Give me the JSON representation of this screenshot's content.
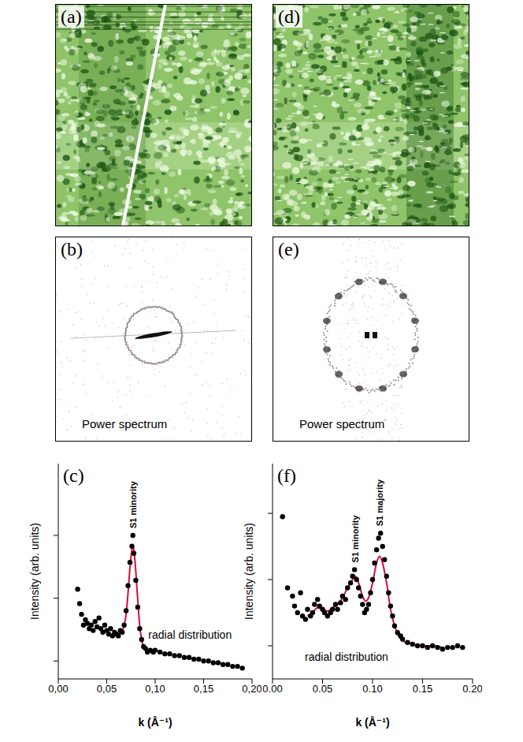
{
  "panels": [
    {
      "label": "(a)"
    },
    {
      "label": "(b)",
      "caption": "Power spectrum"
    },
    {
      "label": "(d)"
    },
    {
      "label": "(e)",
      "caption": "Power spectrum"
    }
  ],
  "chart_data": [
    {
      "type": "scatter",
      "panel_label": "(c)",
      "caption": "radial distribution",
      "x_label": "k (Å⁻¹)",
      "y_label": "Intensity (arb. units)",
      "xlim": [
        0,
        0.2
      ],
      "xticks": [
        {
          "value": 0,
          "label": "0,00"
        },
        {
          "value": 0.05,
          "label": "0,05"
        },
        {
          "value": 0.1,
          "label": "0,10"
        },
        {
          "value": 0.15,
          "label": "0,15"
        },
        {
          "value": 0.2,
          "label": "0,20"
        }
      ],
      "ylim": [
        0,
        120
      ],
      "yticks": [
        10,
        45,
        80
      ],
      "tick_labels": "x",
      "annotations": [
        {
          "text": "S1 minority",
          "x": 0.077
        }
      ],
      "series": [
        {
          "type": "scatter",
          "marker": "circle",
          "color": "#000000",
          "x": [
            0.02,
            0.022,
            0.024,
            0.026,
            0.028,
            0.03,
            0.032,
            0.034,
            0.036,
            0.038,
            0.04,
            0.042,
            0.044,
            0.046,
            0.048,
            0.05,
            0.052,
            0.054,
            0.056,
            0.058,
            0.06,
            0.062,
            0.064,
            0.066,
            0.068,
            0.07,
            0.072,
            0.074,
            0.076,
            0.077,
            0.078,
            0.08,
            0.082,
            0.084,
            0.086,
            0.088,
            0.09,
            0.092,
            0.095,
            0.098,
            0.1,
            0.105,
            0.11,
            0.115,
            0.12,
            0.125,
            0.13,
            0.135,
            0.14,
            0.145,
            0.15,
            0.155,
            0.16,
            0.165,
            0.17,
            0.175,
            0.18,
            0.185,
            0.19
          ],
          "values": [
            50,
            42,
            36,
            30,
            33,
            31,
            28,
            30,
            27,
            32,
            29,
            34,
            28,
            26,
            30,
            27,
            25,
            28,
            24,
            26,
            25,
            24,
            27,
            26,
            30,
            38,
            52,
            65,
            74,
            80,
            70,
            55,
            40,
            28,
            22,
            18,
            17,
            15,
            16,
            15,
            16,
            15,
            14,
            14,
            13,
            13,
            12,
            12,
            11,
            11,
            10,
            10,
            9,
            9,
            8,
            8,
            7,
            7,
            6
          ]
        },
        {
          "type": "line",
          "line_style": "solid",
          "color": "#d0103a",
          "x": [
            0.06,
            0.065,
            0.068,
            0.07,
            0.072,
            0.074,
            0.076,
            0.077,
            0.078,
            0.08,
            0.082,
            0.084,
            0.086,
            0.088,
            0.09,
            0.095,
            0.1
          ],
          "values": [
            25,
            26,
            30,
            36,
            48,
            62,
            72,
            74,
            72,
            60,
            44,
            30,
            22,
            18,
            16,
            15,
            14
          ]
        }
      ]
    },
    {
      "type": "scatter",
      "panel_label": "(f)",
      "caption": "radial distribution",
      "x_label": "k (Å⁻¹)",
      "y_label": "Intensity (arb. units)",
      "xlim": [
        0,
        0.2
      ],
      "xticks": [
        {
          "value": 0,
          "label": "0.00"
        },
        0.05,
        {
          "value": 0.1,
          "label": "0.10"
        },
        0.15,
        {
          "value": 0.2,
          "label": "0.20"
        }
      ],
      "ylim": [
        0,
        130
      ],
      "yticks": [
        20,
        60,
        100
      ],
      "tick_labels": "x",
      "annotations": [
        {
          "text": "S1 minority",
          "x": 0.083
        },
        {
          "text": "S1 majority",
          "x": 0.107
        }
      ],
      "series": [
        {
          "type": "scatter",
          "marker": "circle",
          "color": "#000000",
          "x": [
            0.01,
            0.015,
            0.02,
            0.022,
            0.025,
            0.028,
            0.03,
            0.033,
            0.035,
            0.038,
            0.04,
            0.042,
            0.045,
            0.047,
            0.05,
            0.052,
            0.055,
            0.058,
            0.06,
            0.063,
            0.065,
            0.068,
            0.07,
            0.073,
            0.075,
            0.078,
            0.08,
            0.082,
            0.084,
            0.086,
            0.088,
            0.09,
            0.092,
            0.094,
            0.096,
            0.098,
            0.1,
            0.102,
            0.104,
            0.106,
            0.108,
            0.11,
            0.112,
            0.114,
            0.116,
            0.118,
            0.12,
            0.122,
            0.125,
            0.128,
            0.13,
            0.135,
            0.14,
            0.145,
            0.15,
            0.155,
            0.16,
            0.165,
            0.17,
            0.175,
            0.18,
            0.185,
            0.19
          ],
          "values": [
            98,
            55,
            50,
            44,
            40,
            52,
            38,
            36,
            42,
            38,
            40,
            45,
            48,
            44,
            42,
            40,
            38,
            40,
            42,
            45,
            42,
            46,
            50,
            48,
            55,
            58,
            62,
            66,
            60,
            55,
            50,
            45,
            40,
            42,
            45,
            52,
            60,
            70,
            78,
            85,
            88,
            80,
            72,
            62,
            52,
            44,
            38,
            32,
            28,
            26,
            24,
            22,
            21,
            20,
            20,
            19,
            20,
            19,
            18,
            19,
            19,
            20,
            19
          ]
        },
        {
          "type": "line",
          "line_style": "solid",
          "color": "#d0103a",
          "x": [
            0.035,
            0.04,
            0.045,
            0.05,
            0.055,
            0.06,
            0.065,
            0.07,
            0.075,
            0.08,
            0.083,
            0.086,
            0.09,
            0.093,
            0.096,
            0.1,
            0.104,
            0.107,
            0.11,
            0.114,
            0.118,
            0.122,
            0.126,
            0.13,
            0.14,
            0.15,
            0.16,
            0.17
          ],
          "values": [
            38,
            40,
            43,
            42,
            41,
            43,
            45,
            49,
            55,
            60,
            62,
            58,
            50,
            47,
            49,
            58,
            70,
            74,
            70,
            58,
            42,
            32,
            26,
            23,
            21,
            20,
            20,
            19
          ]
        }
      ]
    }
  ]
}
